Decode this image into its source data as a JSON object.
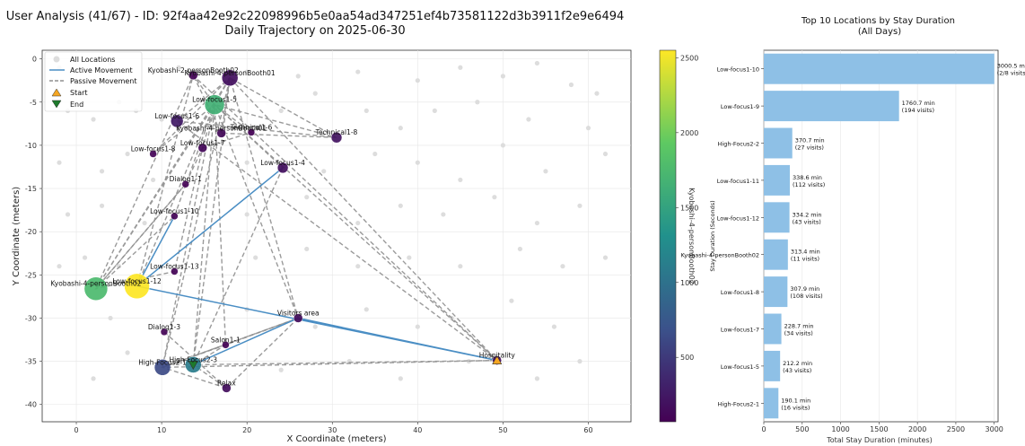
{
  "title_line1": "User Analysis (41/67) - ID: 92f4aa42e92c22098996b5e0aa54ad347251ef4b73581122d3b3911f2e9e6494",
  "title_line2": "Daily Trajectory on 2025-06-30",
  "chart_data": [
    {
      "type": "scatter",
      "xlabel": "X Coordinate (meters)",
      "ylabel": "Y Coordinate (meters)",
      "xlim": [
        -4,
        65
      ],
      "ylim": [
        -42,
        1
      ],
      "xticks": [
        0,
        10,
        20,
        30,
        40,
        50,
        60
      ],
      "yticks": [
        0,
        -5,
        -10,
        -15,
        -20,
        -25,
        -30,
        -35,
        -40
      ],
      "grid": true,
      "legend": {
        "position": "top-left",
        "entries": [
          "All Locations",
          "Active Movement",
          "Passive Movement",
          "Start",
          "End"
        ]
      },
      "colorbar": {
        "label": "Kyobashi-4-personBooth02",
        "ticks": [
          500,
          1000,
          1500,
          2000,
          2500
        ],
        "range": [
          70,
          2550
        ],
        "colors": [
          "#440154",
          "#3b528b",
          "#21918c",
          "#5ec962",
          "#fde725"
        ]
      },
      "colors": {
        "active": "#4a8ec4",
        "passive": "#8f8f8f",
        "start": "#f5a623",
        "end": "#1d7a2b",
        "background_points": "#dddddd"
      },
      "background_points": [
        [
          -2,
          -1
        ],
        [
          4,
          -0.5
        ],
        [
          12,
          -1
        ],
        [
          20,
          -1.5
        ],
        [
          26,
          -2
        ],
        [
          33,
          -1.5
        ],
        [
          40,
          -2.5
        ],
        [
          45,
          -1
        ],
        [
          50,
          -2
        ],
        [
          54,
          -0.5
        ],
        [
          58,
          -3
        ],
        [
          61,
          -4
        ],
        [
          -1,
          -6
        ],
        [
          2,
          -7
        ],
        [
          5,
          -5
        ],
        [
          7,
          -6
        ],
        [
          10,
          -7
        ],
        [
          24,
          -6
        ],
        [
          28,
          -4
        ],
        [
          34,
          -6
        ],
        [
          38,
          -8
        ],
        [
          42,
          -6
        ],
        [
          47,
          -5
        ],
        [
          53,
          -7
        ],
        [
          60,
          -8
        ],
        [
          -2,
          -12
        ],
        [
          3,
          -13
        ],
        [
          6,
          -11
        ],
        [
          9,
          -14
        ],
        [
          20,
          -12
        ],
        [
          29,
          -13
        ],
        [
          35,
          -11
        ],
        [
          40,
          -12
        ],
        [
          45,
          -14
        ],
        [
          50,
          -10
        ],
        [
          55,
          -13
        ],
        [
          62,
          -11
        ],
        [
          -1,
          -18
        ],
        [
          3,
          -17
        ],
        [
          8,
          -19
        ],
        [
          20,
          -18
        ],
        [
          27,
          -16
        ],
        [
          33,
          -19
        ],
        [
          38,
          -17
        ],
        [
          43,
          -18
        ],
        [
          49,
          -16
        ],
        [
          54,
          -19
        ],
        [
          59,
          -17
        ],
        [
          -2,
          -24
        ],
        [
          1,
          -23
        ],
        [
          5,
          -24
        ],
        [
          21,
          -23
        ],
        [
          27,
          -22
        ],
        [
          33,
          -24
        ],
        [
          39,
          -23
        ],
        [
          45,
          -24
        ],
        [
          52,
          -22
        ],
        [
          57,
          -24
        ],
        [
          62,
          -23
        ],
        [
          4,
          -30
        ],
        [
          20,
          -29
        ],
        [
          28,
          -31
        ],
        [
          34,
          -29
        ],
        [
          40,
          -31
        ],
        [
          44,
          -30
        ],
        [
          51,
          -28
        ],
        [
          56,
          -31
        ],
        [
          2,
          -37
        ],
        [
          6,
          -34
        ],
        [
          24,
          -36
        ],
        [
          32,
          -35
        ],
        [
          38,
          -37
        ],
        [
          46,
          -35
        ],
        [
          54,
          -37
        ],
        [
          59,
          -35
        ]
      ],
      "locations": [
        {
          "name": "Kyobashi-2-personBooth02",
          "x": 13.7,
          "y": -1.9,
          "value": 90,
          "size": 5
        },
        {
          "name": "Kyobashi-4-personBooth01",
          "x": 18,
          "y": -2.2,
          "value": 180,
          "size": 9
        },
        {
          "name": "Low-focus1-5",
          "x": 16.2,
          "y": -5.3,
          "value": 1650,
          "size": 11
        },
        {
          "name": "Low-focus1-6",
          "x": 11.8,
          "y": -7.2,
          "value": 260,
          "size": 7
        },
        {
          "name": "Kyobashi-4-personBooth01",
          "x": 17,
          "y": -8.6,
          "value": 120,
          "size": 5
        },
        {
          "name": "Technical1-6",
          "x": 20.5,
          "y": -8.5,
          "value": 80,
          "size": 4
        },
        {
          "name": "Technical1-8",
          "x": 30.5,
          "y": -9.1,
          "value": 200,
          "size": 6
        },
        {
          "name": "Low-focus1-7",
          "x": 14.8,
          "y": -10.3,
          "value": 110,
          "size": 5
        },
        {
          "name": "Low-focus1-8",
          "x": 9,
          "y": -11,
          "value": 100,
          "size": 4
        },
        {
          "name": "Low-focus1-4",
          "x": 24.2,
          "y": -12.6,
          "value": 180,
          "size": 6
        },
        {
          "name": "Dialog1-1",
          "x": 12.8,
          "y": -14.5,
          "value": 90,
          "size": 4
        },
        {
          "name": "Low-focus1-10",
          "x": 11.5,
          "y": -18.2,
          "value": 90,
          "size": 4
        },
        {
          "name": "Low-focus1-13",
          "x": 11.5,
          "y": -24.6,
          "value": 90,
          "size": 4
        },
        {
          "name": "Kyobashi-4-personBooth02",
          "x": 2.3,
          "y": -26.6,
          "value": 1760,
          "size": 13
        },
        {
          "name": "Low-focus1-12",
          "x": 7.1,
          "y": -26.3,
          "value": 2550,
          "size": 14
        },
        {
          "name": "Visitors area",
          "x": 26,
          "y": -30,
          "value": 150,
          "size": 5
        },
        {
          "name": "Dialog1-3",
          "x": 10.3,
          "y": -31.6,
          "value": 90,
          "size": 4
        },
        {
          "name": "Salon1-1",
          "x": 17.5,
          "y": -33.1,
          "value": 90,
          "size": 4
        },
        {
          "name": "Hospitality",
          "x": 49.3,
          "y": -34.9,
          "value": 110,
          "size": 5
        },
        {
          "name": "High-Focus2-1",
          "x": 10.1,
          "y": -35.7,
          "value": 630,
          "size": 9
        },
        {
          "name": "High-Focus2-3",
          "x": 13.7,
          "y": -35.4,
          "value": 1100,
          "size": 9
        },
        {
          "name": "Relax",
          "x": 17.6,
          "y": -38.1,
          "value": 170,
          "size": 5
        }
      ],
      "active_path": [
        [
          49.3,
          -34.9
        ],
        [
          7.1,
          -26.3
        ],
        [
          11.5,
          -18.2
        ],
        [
          7.1,
          -26.3
        ],
        [
          24.2,
          -12.6
        ],
        [
          7.1,
          -26.3
        ],
        [
          49.3,
          -34.9
        ],
        [
          26,
          -30
        ],
        [
          13.7,
          -35.4
        ]
      ],
      "passive_paths": [
        [
          [
            2.3,
            -26.6
          ],
          [
            18,
            -2.2
          ],
          [
            16.2,
            -5.3
          ],
          [
            2.3,
            -26.6
          ],
          [
            13.7,
            -1.9
          ],
          [
            16.2,
            -5.3
          ],
          [
            9,
            -11
          ],
          [
            18,
            -2.2
          ]
        ],
        [
          [
            7.1,
            -26.3
          ],
          [
            16.2,
            -5.3
          ],
          [
            49.3,
            -34.9
          ],
          [
            18,
            -2.2
          ],
          [
            10.1,
            -35.7
          ],
          [
            16.2,
            -5.3
          ],
          [
            26,
            -30
          ],
          [
            18,
            -2.2
          ]
        ],
        [
          [
            13.7,
            -35.4
          ],
          [
            18,
            -2.2
          ],
          [
            11.8,
            -7.2
          ],
          [
            49.3,
            -34.9
          ],
          [
            13.7,
            -1.9
          ],
          [
            7.1,
            -26.3
          ]
        ],
        [
          [
            24.2,
            -12.6
          ],
          [
            13.7,
            -35.4
          ],
          [
            16.2,
            -5.3
          ],
          [
            17.5,
            -33.1
          ],
          [
            10.1,
            -35.7
          ],
          [
            17.6,
            -38.1
          ],
          [
            26,
            -30
          ],
          [
            10.1,
            -35.7
          ]
        ],
        [
          [
            10.3,
            -31.6
          ],
          [
            17.6,
            -38.1
          ],
          [
            13.7,
            -35.4
          ],
          [
            49.3,
            -34.9
          ],
          [
            10.1,
            -35.7
          ],
          [
            26,
            -30
          ],
          [
            17.5,
            -33.1
          ],
          [
            13.7,
            -35.4
          ]
        ],
        [
          [
            11.8,
            -7.2
          ],
          [
            30.5,
            -9.1
          ],
          [
            16.2,
            -5.3
          ],
          [
            20.5,
            -8.5
          ],
          [
            14.8,
            -10.3
          ],
          [
            11.5,
            -24.6
          ],
          [
            2.3,
            -26.6
          ],
          [
            12.8,
            -14.5
          ]
        ],
        [
          [
            16.2,
            -5.3
          ],
          [
            14.8,
            -10.3
          ],
          [
            12.8,
            -14.5
          ],
          [
            2.3,
            -26.6
          ],
          [
            11.5,
            -18.2
          ],
          [
            16.2,
            -5.3
          ],
          [
            24.2,
            -12.6
          ]
        ],
        [
          [
            17,
            -8.6
          ],
          [
            18,
            -2.2
          ],
          [
            30.5,
            -9.1
          ],
          [
            17,
            -8.6
          ],
          [
            13.7,
            -1.9
          ]
        ]
      ],
      "start": {
        "x": 49.3,
        "y": -34.9
      },
      "end": {
        "x": 13.7,
        "y": -35.4
      }
    },
    {
      "type": "bar",
      "orientation": "horizontal",
      "title": "Top 10 Locations by Stay Duration\n(All Days)",
      "xlabel": "Total Stay Duration (minutes)",
      "ylabel": "Stay Duration (Seconds)",
      "xlim": [
        0,
        3050
      ],
      "xticks": [
        0,
        500,
        1000,
        1500,
        2000,
        2500,
        3000
      ],
      "color": "#8ec0e6",
      "categories": [
        "Low-focus1-10",
        "Low-focus1-9",
        "High-Focus2-2",
        "Low-focus1-11",
        "Low-focus1-12",
        "Kyobashi-4-personBooth02",
        "Low-focus1-8",
        "Low-focus1-7",
        "Low-focus1-5",
        "High-Focus2-1"
      ],
      "values": [
        3000.5,
        1760.7,
        370.7,
        338.6,
        334.2,
        313.4,
        307.9,
        228.7,
        212.2,
        190.1
      ],
      "value_labels": [
        "3000.5 min",
        "1760.7 min",
        "370.7 min",
        "338.6 min",
        "334.2 min",
        "313.4 min",
        "307.9 min",
        "228.7 min",
        "212.2 min",
        "190.1 min"
      ],
      "visit_labels": [
        "(2/8 visits)",
        "(194 visits)",
        "(27 visits)",
        "(112 visits)",
        "(43 visits)",
        "(11 visits)",
        "(108 visits)",
        "(34 visits)",
        "(43 visits)",
        "(16 visits)"
      ]
    }
  ]
}
